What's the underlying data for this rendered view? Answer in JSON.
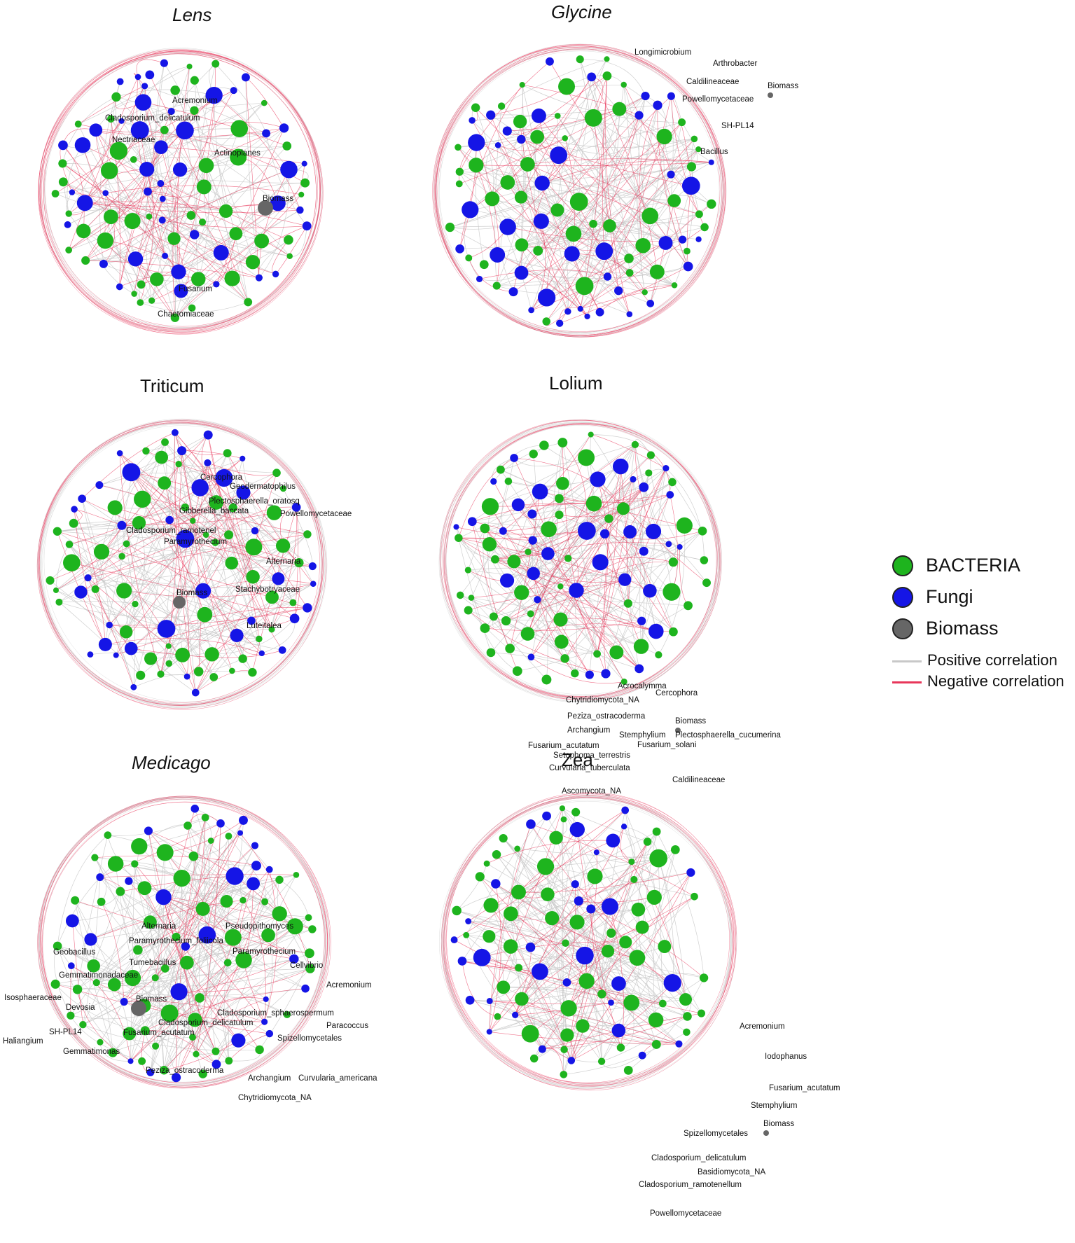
{
  "colors": {
    "bacteria": "#1eb41e",
    "fungi": "#1515e6",
    "biomass": "#666666",
    "positive": "#c8c8c8",
    "negative": "#e8365a"
  },
  "legend": {
    "bacteria": "BACTERIA",
    "fungi": "Fungi",
    "biomass": "Biomass",
    "positive": "Positive correlation",
    "negative": "Negative correlation"
  },
  "panels": [
    {
      "title": "Lens",
      "italic": true,
      "labels": [
        "Acremonium",
        "Cladosporium_delicatulum",
        "Nectriaceae",
        "Actinoplanes",
        "Biomass",
        "Fusarium",
        "Chaetomiaceae"
      ]
    },
    {
      "title": "Glycine",
      "italic": true,
      "labels": [
        "Longimicrobium",
        "Arthrobacter",
        "Caldilineaceae",
        "Biomass",
        "Powellomycetaceae",
        "SH-PL14",
        "Bacillus"
      ]
    },
    {
      "title": "Triticum",
      "italic": false,
      "labels": [
        "Cercophora",
        "Geodermatophilus",
        "Plectosphaerella_oratosq",
        "Gibberella_baccata",
        "Powellomycetaceae",
        "Cladosporium_ramotenel",
        "Paramyrothecium",
        "Alternaria",
        "Biomass",
        "Stachybotryaceae",
        "Luteitalea"
      ]
    },
    {
      "title": "Lolium",
      "italic": false,
      "labels": [
        "Acrocalymma",
        "Chytridiomycota_NA",
        "Cercophora",
        "Peziza_ostracoderma",
        "Biomass",
        "Archangium",
        "Stemphylium",
        "Plectosphaerella_cucumerina",
        "Fusarium_acutatum",
        "Fusarium_solani",
        "Setophoma_terrestris",
        "Curvularia_tuberculata",
        "Caldilineaceae",
        "Ascomycota_NA"
      ]
    },
    {
      "title": "Medicago",
      "italic": true,
      "labels": [
        "Alternaria",
        "Pseudopithomyces",
        "Paramyrothecium_foliicola",
        "Paramyrothecium",
        "Geobacillus",
        "Tumebacillus",
        "Cellvibrio",
        "Gemmatimonadaceae",
        "Acremonium",
        "Isosphaeraceae",
        "Biomass",
        "Devosia",
        "Cladosporium_sphaerospermum",
        "Cladosporium_delicatulum",
        "Paracoccus",
        "SH-PL14",
        "Fusarium_acutatum",
        "Spizellomycetales",
        "Haliangium",
        "Gemmatimonas",
        "Peziza_ostracoderma",
        "Archangium",
        "Curvularia_americana",
        "Chytridiomycota_NA"
      ]
    },
    {
      "title": "Zea",
      "italic": false,
      "labels": [
        "Acremonium",
        "Iodophanus",
        "Fusarium_acutatum",
        "Stemphylium",
        "Biomass",
        "Spizellomycetales",
        "Cladosporium_delicatulum",
        "Basidiomycota_NA",
        "Cladosporium_ramotenellum",
        "Powellomycetaceae"
      ]
    }
  ]
}
